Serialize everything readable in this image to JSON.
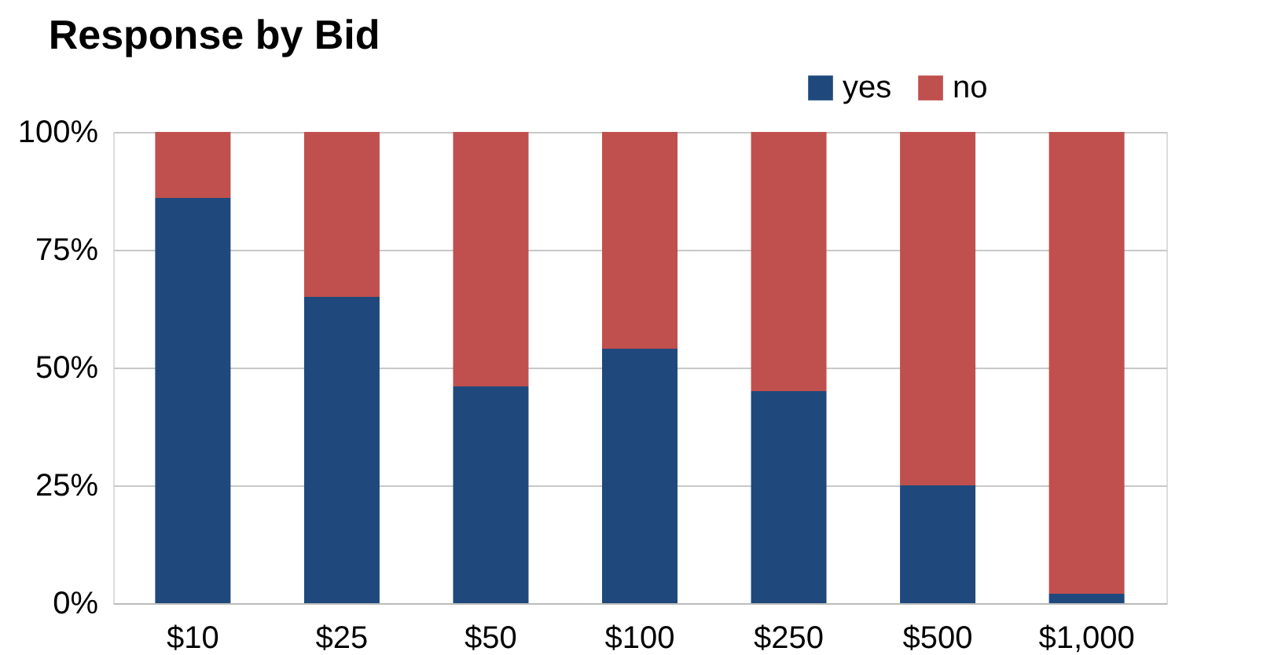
{
  "chart_data": {
    "type": "bar",
    "title": "Response by Bid",
    "stacked": true,
    "categories": [
      "$10",
      "$25",
      "$50",
      "$100",
      "$250",
      "$500",
      "$1,000"
    ],
    "series": [
      {
        "name": "yes",
        "color": "#1f497d",
        "values": [
          86,
          65,
          46,
          54,
          45,
          25,
          2
        ]
      },
      {
        "name": "no",
        "color": "#c0504d",
        "values": [
          14,
          35,
          54,
          46,
          55,
          75,
          98
        ]
      }
    ],
    "ylim": [
      0,
      100
    ],
    "yticks": [
      {
        "value": 0,
        "label": "0%"
      },
      {
        "value": 25,
        "label": "25%"
      },
      {
        "value": 50,
        "label": "50%"
      },
      {
        "value": 75,
        "label": "75%"
      },
      {
        "value": 100,
        "label": "100%"
      }
    ],
    "grid": "y",
    "legend": "top right"
  }
}
